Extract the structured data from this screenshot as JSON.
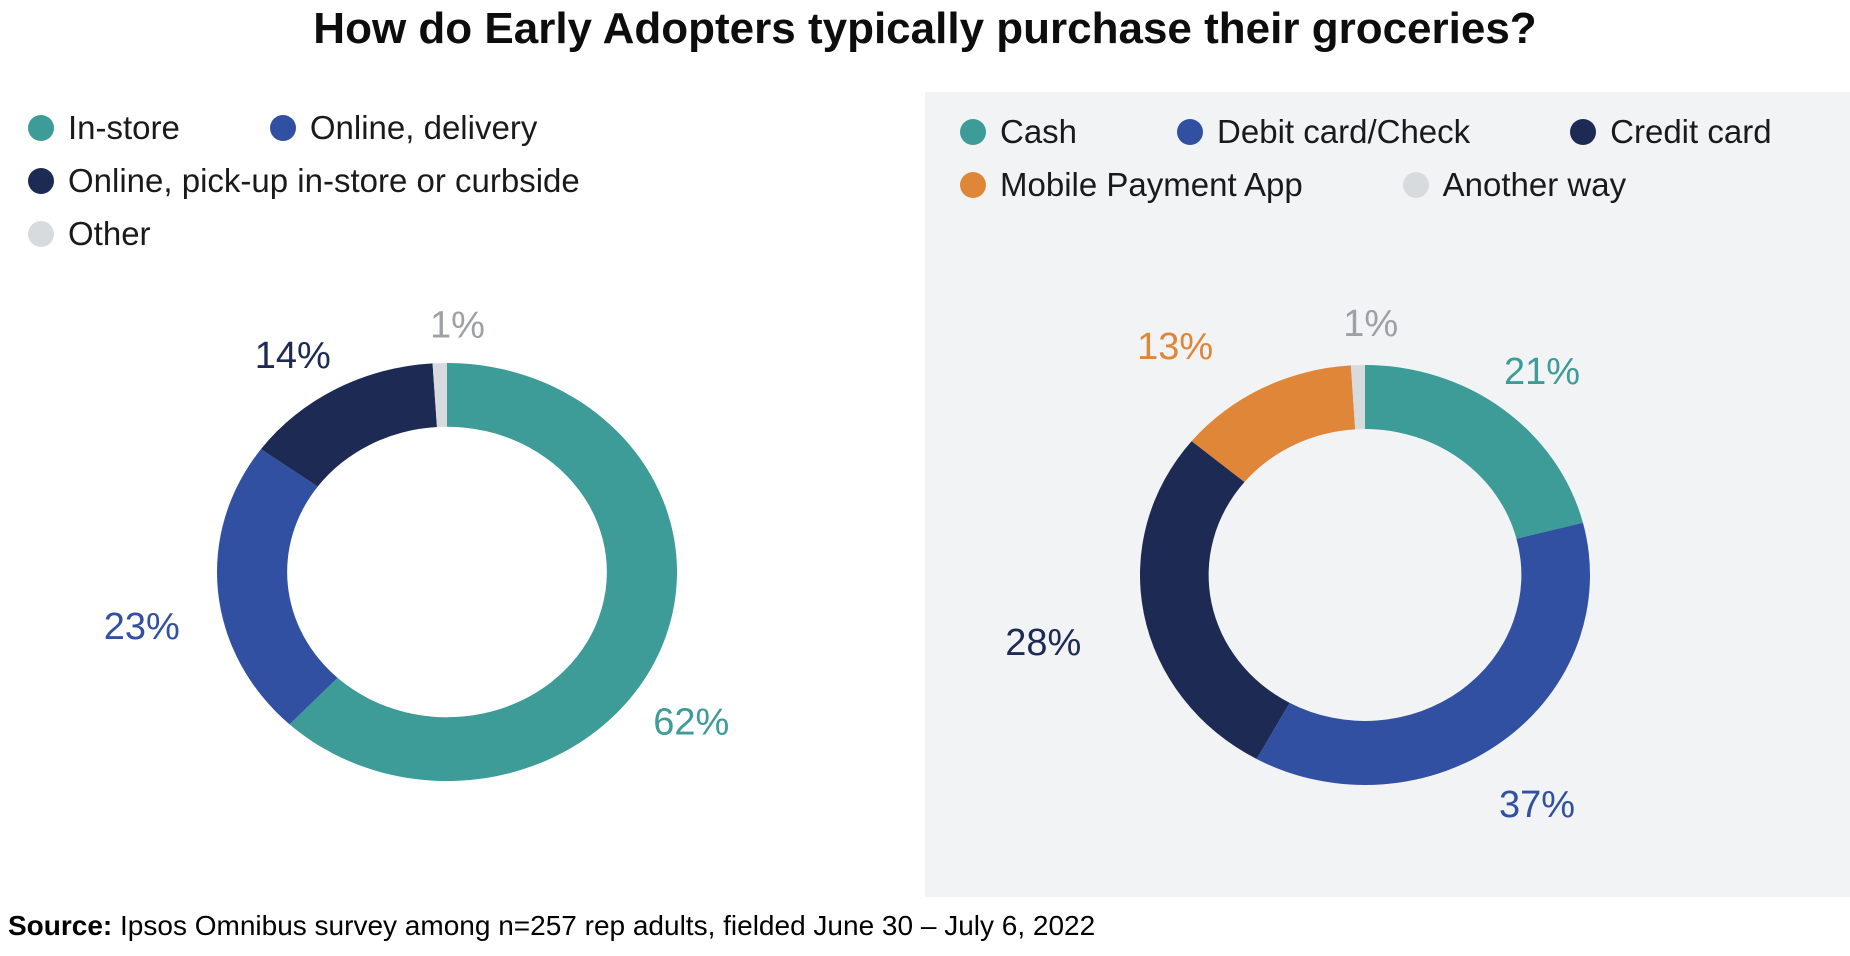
{
  "title": "How do Early Adopters typically purchase their groceries?",
  "source": {
    "label": "Source:",
    "text": " Ipsos Omnibus survey among n=257 rep adults, fielded June 30 – July 6, 2022"
  },
  "colors": {
    "teal": "#3d9c98",
    "blue": "#3150a2",
    "navy": "#1c2a54",
    "orange": "#e08638",
    "light_gray": "#d8dbdd",
    "gray_label": "#9da1a5",
    "panel_background": "#f1f3f5",
    "legend_text": "#1a1a1a",
    "title_text": "#0d0d0d"
  },
  "chart_data": [
    {
      "type": "pie",
      "subtype": "donut",
      "name": "grocery-purchase-method",
      "legend_position": "top-left",
      "values_are_percent": true,
      "value_suffix": "%",
      "segments": [
        {
          "label": "In-store",
          "value": 62,
          "color": "#3d9c98"
        },
        {
          "label": "Online, delivery",
          "value": 23,
          "color": "#3150a2"
        },
        {
          "label": "Online, pick-up in-store or curbside",
          "value": 14,
          "color": "#1c2a54"
        },
        {
          "label": "Other",
          "value": 1,
          "color": "#d8dbdd",
          "label_color": "#9da1a5"
        }
      ]
    },
    {
      "type": "pie",
      "subtype": "donut",
      "name": "grocery-payment-method",
      "legend_position": "top-left",
      "values_are_percent": true,
      "value_suffix": "%",
      "segments": [
        {
          "label": "Cash",
          "value": 21,
          "color": "#3d9c98"
        },
        {
          "label": "Debit card/Check",
          "value": 37,
          "color": "#3150a2"
        },
        {
          "label": "Credit card",
          "value": 28,
          "color": "#1c2a54"
        },
        {
          "label": "Mobile Payment App",
          "value": 13,
          "color": "#e08638"
        },
        {
          "label": "Another way",
          "value": 1,
          "color": "#d8dbdd",
          "label_color": "#9da1a5"
        }
      ]
    }
  ]
}
